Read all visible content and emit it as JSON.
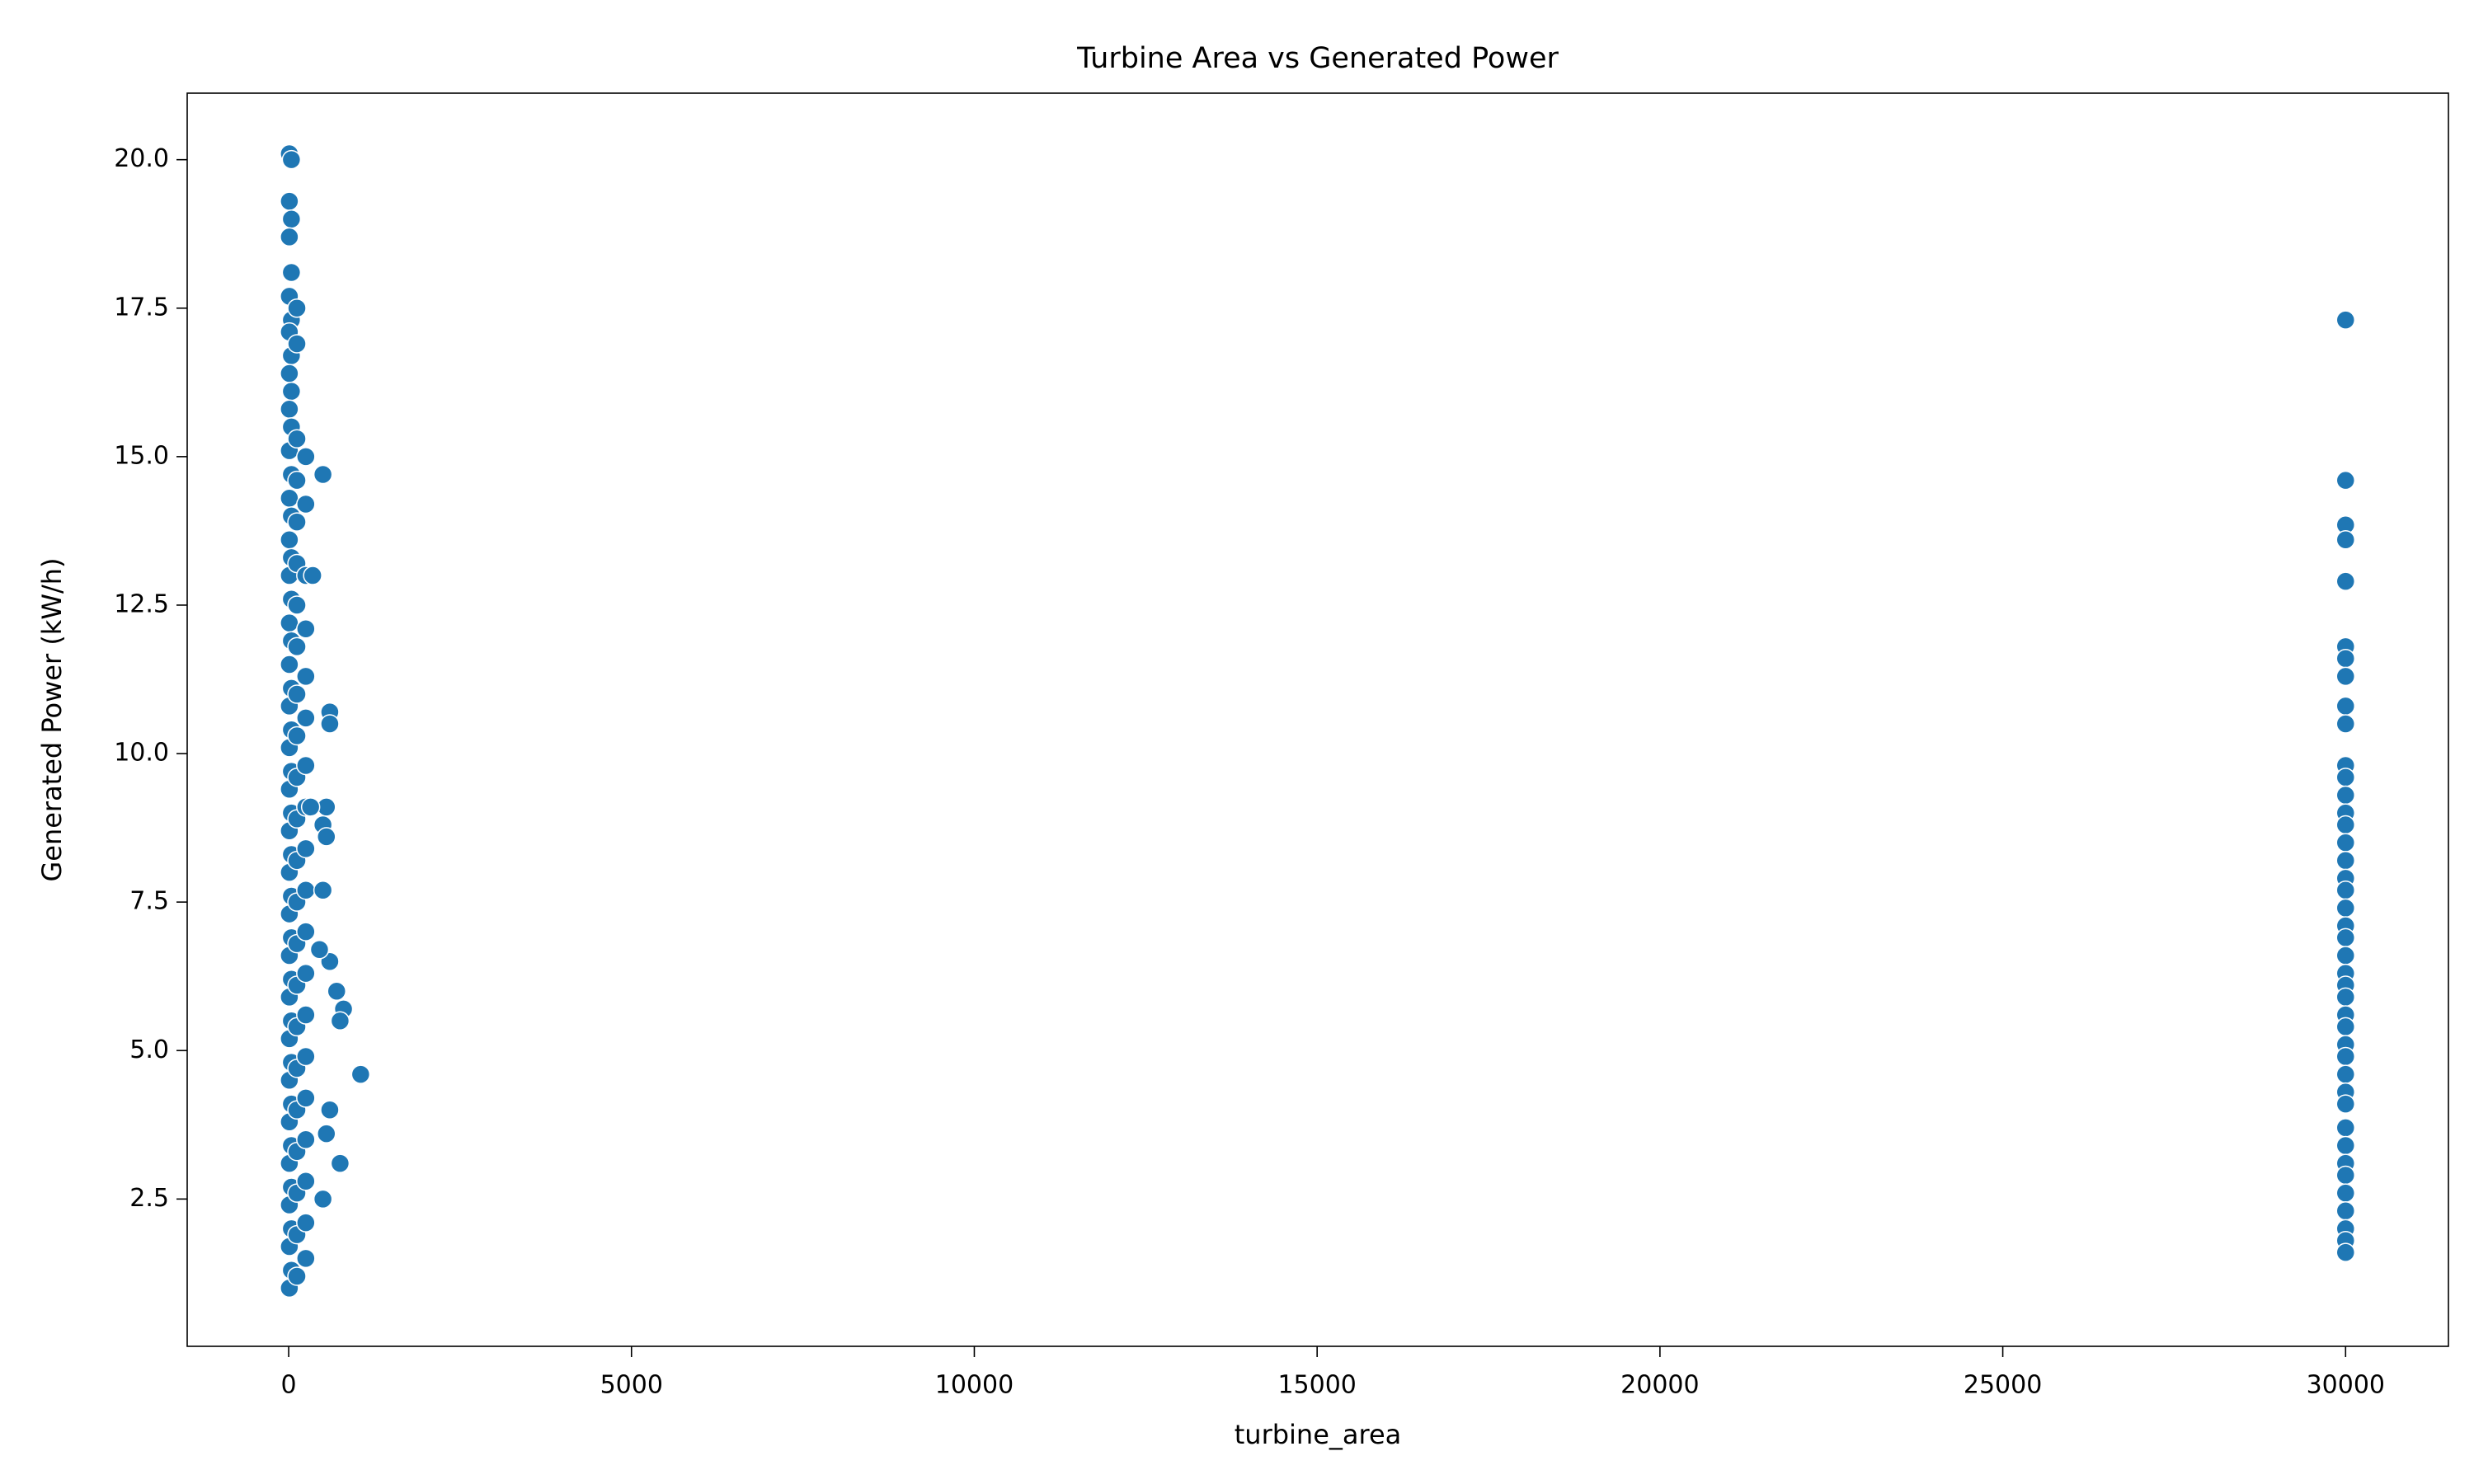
{
  "chart_data": {
    "type": "scatter",
    "title": "Turbine Area vs Generated Power",
    "xlabel": "turbine_area",
    "ylabel": "Generated Power (kW/h)",
    "color": "#1f77b4",
    "x": [
      10,
      40,
      10,
      40,
      10,
      40,
      10,
      40,
      10,
      40,
      10,
      40,
      10,
      40,
      10,
      40,
      10,
      40,
      10,
      40,
      10,
      40,
      10,
      40,
      10,
      40,
      10,
      40,
      10,
      40,
      10,
      40,
      10,
      40,
      10,
      40,
      10,
      40,
      10,
      40,
      10,
      40,
      10,
      40,
      10,
      40,
      10,
      40,
      10,
      40,
      10,
      40,
      10,
      40,
      10,
      120,
      120,
      120,
      120,
      120,
      120,
      120,
      120,
      120,
      120,
      120,
      120,
      120,
      120,
      120,
      120,
      120,
      120,
      120,
      120,
      120,
      120,
      120,
      250,
      250,
      250,
      250,
      250,
      250,
      250,
      250,
      250,
      250,
      250,
      250,
      250,
      250,
      250,
      250,
      250,
      250,
      250,
      500,
      350,
      600,
      600,
      550,
      500,
      550,
      500,
      600,
      700,
      800,
      750,
      1050,
      750,
      550,
      500,
      600,
      450,
      320,
      30000,
      30000,
      30000,
      30000,
      30000,
      30000,
      30000,
      30000,
      30000,
      30000,
      30000,
      30000,
      30000,
      30000,
      30000,
      30000,
      30000,
      30000,
      30000,
      30000,
      30000,
      30000,
      30000,
      30000,
      30000,
      30000,
      30000,
      30000,
      30000,
      30000,
      30000,
      30000,
      30000,
      30000,
      30000,
      30000,
      30000,
      30000,
      30000,
      30000,
      30000,
      30000
    ],
    "values": [
      20.1,
      20.0,
      19.3,
      19.0,
      18.7,
      18.1,
      17.7,
      17.3,
      17.1,
      16.7,
      16.4,
      16.1,
      15.8,
      15.5,
      15.1,
      14.7,
      14.3,
      14.0,
      13.6,
      13.3,
      13.0,
      12.6,
      12.2,
      11.9,
      11.5,
      11.1,
      10.8,
      10.4,
      10.1,
      9.7,
      9.4,
      9.0,
      8.7,
      8.3,
      8.0,
      7.6,
      7.3,
      6.9,
      6.6,
      6.2,
      5.9,
      5.5,
      5.2,
      4.8,
      4.5,
      4.1,
      3.8,
      3.4,
      3.1,
      2.7,
      2.4,
      2.0,
      1.7,
      1.3,
      1.0,
      17.5,
      16.9,
      15.3,
      14.6,
      13.9,
      13.2,
      12.5,
      11.8,
      11.0,
      10.3,
      9.6,
      8.9,
      8.2,
      7.5,
      6.8,
      6.1,
      5.4,
      4.7,
      4.0,
      3.3,
      2.6,
      1.9,
      1.2,
      15.0,
      14.2,
      13.0,
      12.1,
      11.3,
      10.6,
      9.8,
      9.1,
      8.4,
      7.7,
      7.0,
      6.3,
      5.6,
      4.9,
      4.2,
      3.5,
      2.8,
      2.1,
      1.5,
      14.7,
      13.0,
      10.7,
      10.5,
      9.1,
      8.8,
      8.6,
      7.7,
      6.5,
      6.0,
      5.7,
      5.5,
      4.6,
      3.1,
      3.6,
      2.5,
      4.0,
      6.7,
      9.1,
      17.3,
      14.6,
      13.85,
      13.6,
      12.9,
      11.8,
      11.6,
      11.3,
      10.8,
      10.5,
      9.8,
      9.6,
      9.3,
      9.0,
      8.8,
      8.5,
      8.2,
      7.9,
      7.7,
      7.4,
      7.1,
      6.9,
      6.6,
      6.3,
      6.1,
      5.9,
      5.6,
      5.4,
      5.1,
      4.9,
      4.6,
      4.3,
      4.1,
      3.7,
      3.4,
      3.1,
      2.9,
      2.6,
      2.3,
      2.0,
      1.8,
      1.6
    ],
    "xlim": [
      -1480,
      31500
    ],
    "xticks": [
      0,
      5000,
      10000,
      15000,
      20000,
      25000,
      30000
    ],
    "ylim": [
      0.02,
      21.12
    ],
    "yticks": [
      2.5,
      {
        "value": 5,
        "label": "5.0"
      },
      7.5,
      {
        "value": 10,
        "label": "10.0"
      },
      12.5,
      {
        "value": 15,
        "label": "15.0"
      },
      17.5,
      {
        "value": 20,
        "label": "20.0"
      }
    ],
    "grid": false
  }
}
